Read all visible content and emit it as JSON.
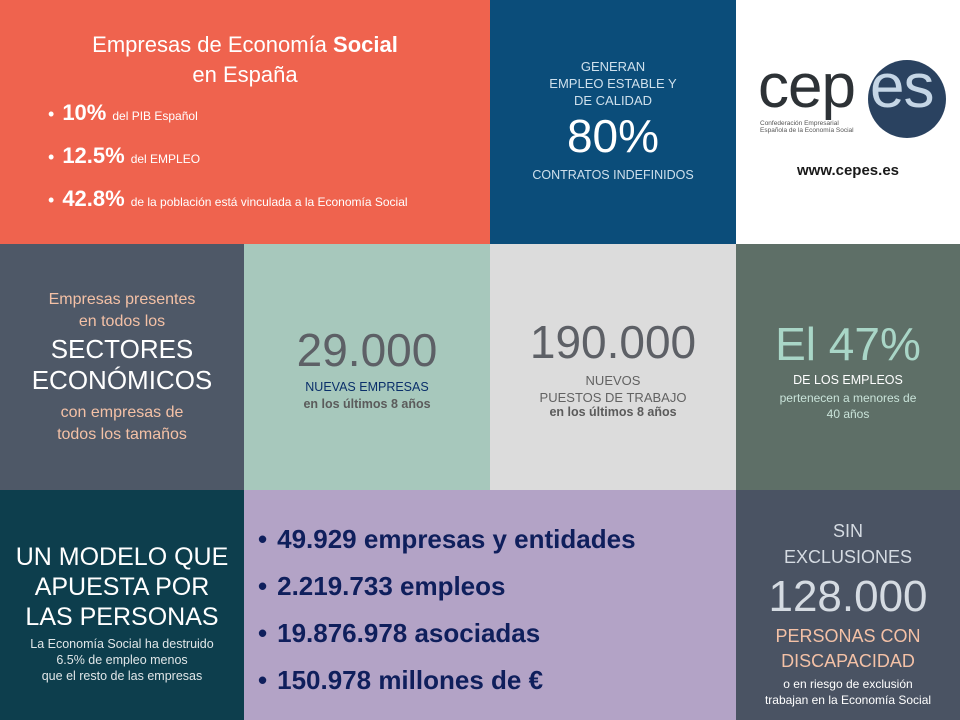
{
  "hero": {
    "title_plain": "Empresas de Economía ",
    "title_bold": "Social",
    "title_line2": "en España",
    "items": [
      {
        "value": "10%",
        "text": "del PIB Español"
      },
      {
        "value": "12.5%",
        "text": "del EMPLEO"
      },
      {
        "value": "42.8%",
        "text": "de la población está vinculada a la Economía Social"
      }
    ]
  },
  "stable": {
    "line1": "GENERAN",
    "line2": "EMPLEO ESTABLE Y",
    "line3": "DE CALIDAD",
    "value": "80%",
    "caption": "CONTRATOS INDEFINIDOS"
  },
  "logo": {
    "brand_a": "cep",
    "brand_b": "es",
    "caption_line1": "Confederación Empresarial",
    "caption_line2": "Española de la Economía Social",
    "url": "www.cepes.es"
  },
  "sectors": {
    "line1": "Empresas presentes",
    "line2": "en todos los",
    "big1": "SECTORES",
    "big2": "ECONÓMICOS",
    "line3": "con empresas de",
    "line4": "todos los tamaños"
  },
  "companies": {
    "value": "29.000",
    "line1": "NUEVAS EMPRESAS",
    "line2": "en los últimos 8 años"
  },
  "jobs": {
    "value": "190.000",
    "line1": "NUEVOS",
    "line2": "PUESTOS DE TRABAJO",
    "line3": "en los últimos 8 años"
  },
  "young": {
    "value": "El 47%",
    "line1": "DE LOS EMPLEOS",
    "line2": "pertenecen a menores de",
    "line3": "40 años"
  },
  "model": {
    "line1": "UN MODELO QUE",
    "line2": "APUESTA POR",
    "line3": "LAS PERSONAS",
    "text1": "La Economía Social ha destruido",
    "text2": "6.5% de empleo menos",
    "text3": "que el resto de las empresas"
  },
  "figures": {
    "items": [
      "49.929 empresas y entidades",
      "2.219.733 empleos",
      "19.876.978 asociadas",
      "150.978 millones de €"
    ]
  },
  "inclusion": {
    "line1": "SIN",
    "line2": "EXCLUSIONES",
    "value": "128.000",
    "line3": "PERSONAS CON",
    "line4": "DISCAPACIDAD",
    "text1": "o en riesgo de exclusión",
    "text2": "trabajan en la Economía Social"
  }
}
